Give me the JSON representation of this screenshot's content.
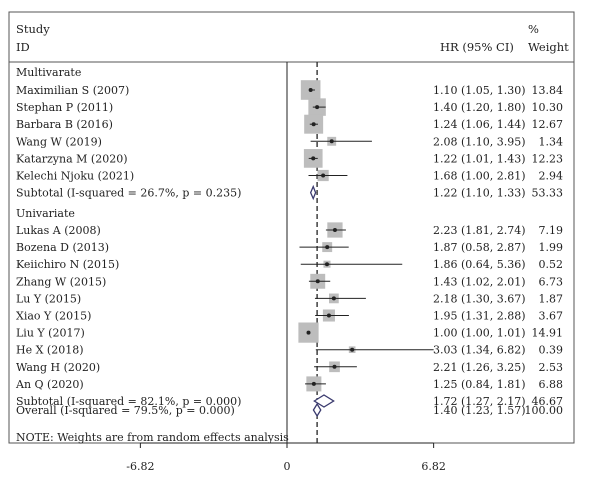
{
  "chart_data": {
    "type": "forest",
    "headers": {
      "study_line1": "Study",
      "study_line2": "ID",
      "hr": "HR (95% CI)",
      "weight_line1": "%",
      "weight_line2": "Weight"
    },
    "x_axis": {
      "ticks": [
        -6.82,
        0,
        6.82
      ],
      "tick_labels": [
        "-6.82",
        "0",
        "6.82"
      ]
    },
    "null_line": 0,
    "overall_line": 1.4,
    "groups": [
      {
        "name": "Multivarate",
        "studies": [
          {
            "label": "Maximilian S (2007)",
            "hr": 1.1,
            "lo": 1.05,
            "hi": 1.3,
            "ci_text": "1.10 (1.05, 1.30)",
            "weight": 13.84,
            "weight_text": "13.84"
          },
          {
            "label": "Stephan P (2011)",
            "hr": 1.4,
            "lo": 1.2,
            "hi": 1.8,
            "ci_text": "1.40 (1.20, 1.80)",
            "weight": 10.3,
            "weight_text": "10.30"
          },
          {
            "label": "Barbara B (2016)",
            "hr": 1.24,
            "lo": 1.06,
            "hi": 1.44,
            "ci_text": "1.24 (1.06, 1.44)",
            "weight": 12.67,
            "weight_text": "12.67"
          },
          {
            "label": "Wang W (2019)",
            "hr": 2.08,
            "lo": 1.1,
            "hi": 3.95,
            "ci_text": "2.08 (1.10, 3.95)",
            "weight": 1.34,
            "weight_text": "1.34"
          },
          {
            "label": "Katarzyna M (2020)",
            "hr": 1.22,
            "lo": 1.01,
            "hi": 1.43,
            "ci_text": "1.22 (1.01, 1.43)",
            "weight": 12.23,
            "weight_text": "12.23"
          },
          {
            "label": "Kelechi Njoku (2021)",
            "hr": 1.68,
            "lo": 1.0,
            "hi": 2.81,
            "ci_text": "1.68 (1.00, 2.81)",
            "weight": 2.94,
            "weight_text": "2.94"
          }
        ],
        "subtotal": {
          "label": "Subtotal (I-squared = 26.7%, p = 0.235)",
          "hr": 1.22,
          "lo": 1.1,
          "hi": 1.33,
          "ci_text": "1.22 (1.10, 1.33)",
          "weight_text": "53.33"
        }
      },
      {
        "name": "Univariate",
        "studies": [
          {
            "label": "Lukas A (2008)",
            "hr": 2.23,
            "lo": 1.81,
            "hi": 2.74,
            "ci_text": "2.23 (1.81, 2.74)",
            "weight": 7.19,
            "weight_text": "7.19"
          },
          {
            "label": "Bozena D (2013)",
            "hr": 1.87,
            "lo": 0.58,
            "hi": 2.87,
            "ci_text": "1.87 (0.58, 2.87)",
            "weight": 1.99,
            "weight_text": "1.99"
          },
          {
            "label": "Keiichiro N (2015)",
            "hr": 1.86,
            "lo": 0.64,
            "hi": 5.36,
            "ci_text": "1.86 (0.64, 5.36)",
            "weight": 0.52,
            "weight_text": "0.52"
          },
          {
            "label": "Zhang W (2015)",
            "hr": 1.43,
            "lo": 1.02,
            "hi": 2.01,
            "ci_text": "1.43 (1.02, 2.01)",
            "weight": 6.73,
            "weight_text": "6.73"
          },
          {
            "label": "Lu Y (2015)",
            "hr": 2.18,
            "lo": 1.3,
            "hi": 3.67,
            "ci_text": "2.18 (1.30, 3.67)",
            "weight": 1.87,
            "weight_text": "1.87"
          },
          {
            "label": "Xiao Y (2015)",
            "hr": 1.95,
            "lo": 1.31,
            "hi": 2.88,
            "ci_text": "1.95 (1.31, 2.88)",
            "weight": 3.67,
            "weight_text": "3.67"
          },
          {
            "label": "Liu Y (2017)",
            "hr": 1.0,
            "lo": 1.0,
            "hi": 1.01,
            "ci_text": "1.00 (1.00, 1.01)",
            "weight": 14.91,
            "weight_text": "14.91"
          },
          {
            "label": "He X (2018)",
            "hr": 3.03,
            "lo": 1.34,
            "hi": 6.82,
            "ci_text": "3.03 (1.34, 6.82)",
            "weight": 0.39,
            "weight_text": "0.39"
          },
          {
            "label": "Wang H (2020)",
            "hr": 2.21,
            "lo": 1.26,
            "hi": 3.25,
            "ci_text": "2.21 (1.26, 3.25)",
            "weight": 2.53,
            "weight_text": "2.53"
          },
          {
            "label": "An Q (2020)",
            "hr": 1.25,
            "lo": 0.84,
            "hi": 1.81,
            "ci_text": "1.25 (0.84, 1.81)",
            "weight": 6.88,
            "weight_text": "6.88"
          }
        ],
        "subtotal": {
          "label": "Subtotal (I-squared = 82.1%, p = 0.000)",
          "hr": 1.72,
          "lo": 1.27,
          "hi": 2.17,
          "ci_text": "1.72 (1.27, 2.17)",
          "weight_text": "46.67"
        }
      }
    ],
    "overall": {
      "label": "Overall (I-squared = 79.5%, p = 0.000)",
      "hr": 1.4,
      "lo": 1.23,
      "hi": 1.57,
      "ci_text": "1.40 (1.23, 1.57)",
      "weight_text": "100.00"
    },
    "note": "NOTE: Weights are from random effects analysis",
    "colors": {
      "box": "#bdbdbd",
      "ink": "#222222",
      "diamond": "#3a3a6e",
      "frame": "#555555"
    }
  }
}
